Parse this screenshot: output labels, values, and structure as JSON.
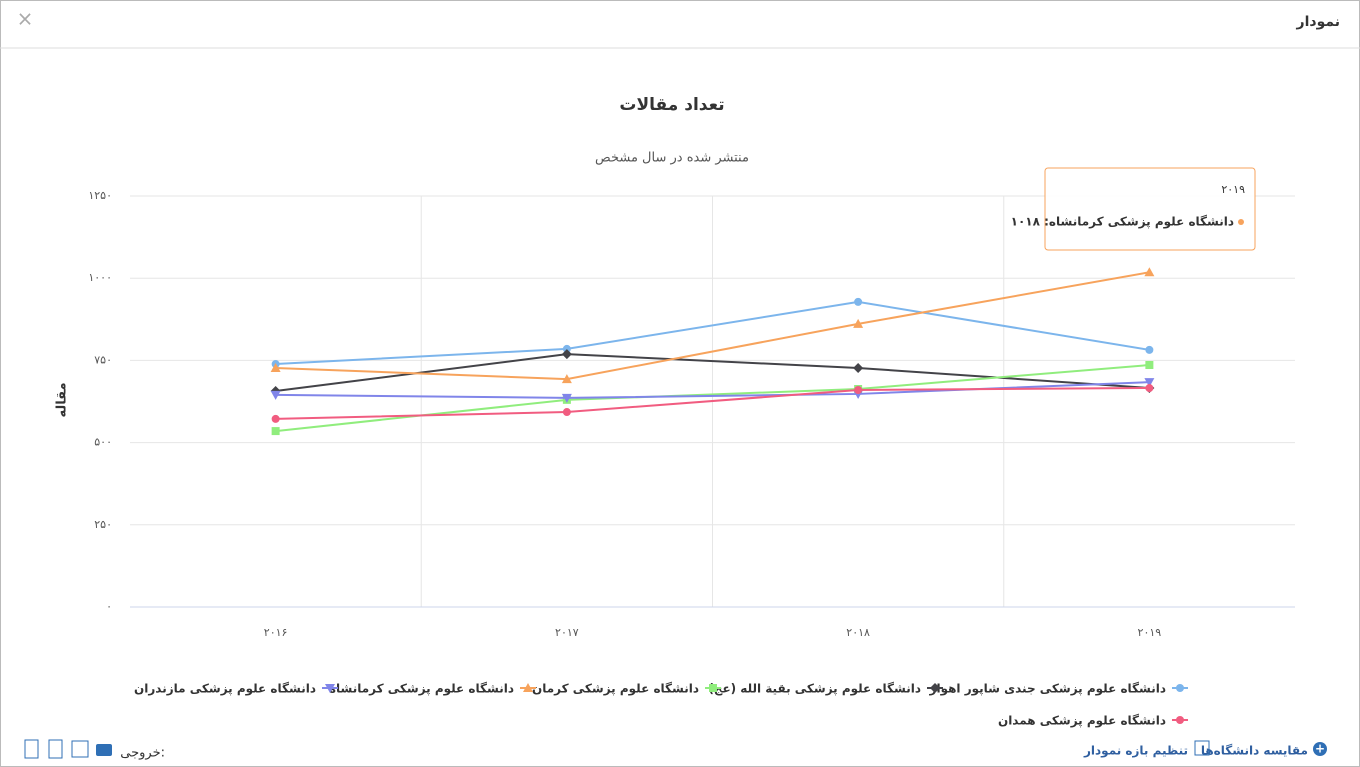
{
  "header": {
    "title": "نمودار",
    "close": "×"
  },
  "chart_data": {
    "type": "line",
    "title": "تعداد مقالات",
    "subtitle": "منتشر شده در سال مشخص",
    "y_label": "مقاله",
    "categories": [
      "۲۰۱۶",
      "۲۰۱۷",
      "۲۰۱۸",
      "۲۰۱۹"
    ],
    "ylim": [
      0,
      1250
    ],
    "yticks": [
      {
        "value": 0,
        "label": "۰"
      },
      {
        "value": 250,
        "label": "۲۵۰"
      },
      {
        "value": 500,
        "label": "۵۰۰"
      },
      {
        "value": 750,
        "label": "۷۵۰"
      },
      {
        "value": 1000,
        "label": "۱۰۰۰"
      },
      {
        "value": 1250,
        "label": "۱۲۵۰"
      }
    ],
    "grid": true,
    "series": [
      {
        "name": "دانشگاه علوم پزشکی جندی شاپور اهواز",
        "color": "#7cb5ec",
        "marker": "circle",
        "values": [
          739,
          785,
          928,
          782
        ]
      },
      {
        "name": "دانشگاه علوم پزشکی بقیة الله (عج)",
        "color": "#434348",
        "marker": "diamond",
        "values": [
          657,
          769,
          727,
          666
        ]
      },
      {
        "name": "دانشگاه علوم پزشکی کرمان",
        "color": "#90ed7d",
        "marker": "square",
        "values": [
          535,
          630,
          663,
          736
        ]
      },
      {
        "name": "دانشگاه علوم پزشکی کرمانشاه",
        "color": "#f7a35c",
        "marker": "triangle",
        "values": [
          727,
          693,
          861,
          1018
        ]
      },
      {
        "name": "دانشگاه علوم پزشکی مازندران",
        "color": "#8085e9",
        "marker": "triangle-down",
        "values": [
          645,
          636,
          648,
          684
        ]
      },
      {
        "name": "دانشگاه علوم پزشکی همدان",
        "color": "#f15c80",
        "marker": "circle",
        "values": [
          572,
          593,
          660,
          666
        ]
      }
    ],
    "tooltip": {
      "title": "۲۰۱۹",
      "label": "دانشگاه علوم پزشکی کرمانشاه: ۱۰۱۸"
    }
  },
  "footer": {
    "compare": "مقایسه دانشگاه‌ها",
    "range": "تنظیم بازه نمودار",
    "export": "خروجی:"
  }
}
